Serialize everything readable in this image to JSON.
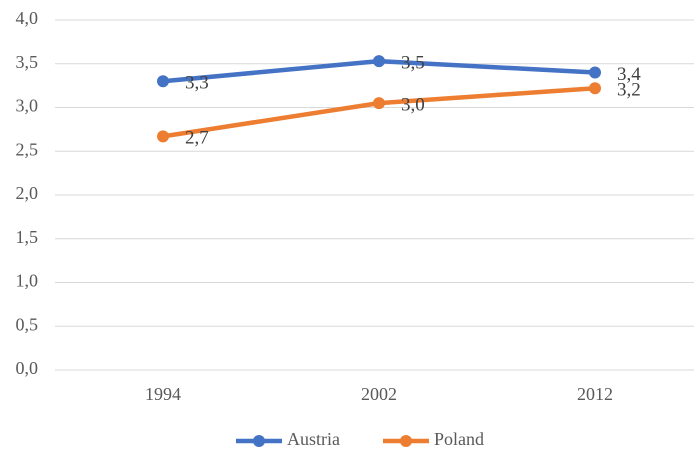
{
  "chart_data": {
    "type": "line",
    "categories": [
      "1994",
      "2002",
      "2012"
    ],
    "series": [
      {
        "name": "Austria",
        "color": "#4472c4",
        "values": [
          3.3,
          3.53,
          3.4
        ],
        "value_labels": [
          "3,3",
          "3,5",
          "3,4"
        ]
      },
      {
        "name": "Poland",
        "color": "#ed7d31",
        "values": [
          2.67,
          3.05,
          3.22
        ],
        "value_labels": [
          "2,7",
          "3,0",
          "3,2"
        ]
      }
    ],
    "ylim": [
      0,
      4
    ],
    "yticks": [
      {
        "value": 0,
        "label": "0,0"
      },
      {
        "value": 0.5,
        "label": "0,5"
      },
      {
        "value": 1,
        "label": "1,0"
      },
      {
        "value": 1.5,
        "label": "1,5"
      },
      {
        "value": 2,
        "label": "2,0"
      },
      {
        "value": 2.5,
        "label": "2,5"
      },
      {
        "value": 3,
        "label": "3,0"
      },
      {
        "value": 3.5,
        "label": "3,5"
      },
      {
        "value": 4,
        "label": "4,0"
      }
    ],
    "grid": true,
    "legend": "bottom"
  }
}
